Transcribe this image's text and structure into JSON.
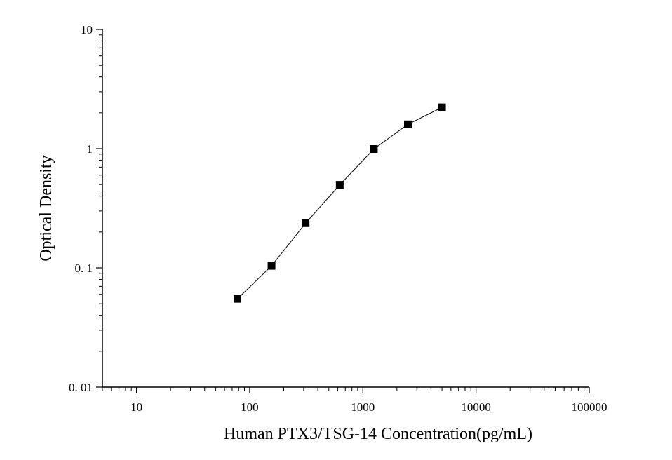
{
  "chart_data": {
    "type": "line",
    "title": "",
    "xlabel": "Human PTX3/TSG-14 Concentration(pg/mL)",
    "ylabel": "Optical Density",
    "x_scale": "log",
    "y_scale": "log",
    "xlim": [
      5,
      100000
    ],
    "ylim": [
      0.01,
      10
    ],
    "x_ticks": [
      {
        "value": 10,
        "label": "10"
      },
      {
        "value": 100,
        "label": "100"
      },
      {
        "value": 1000,
        "label": "1000"
      },
      {
        "value": 10000,
        "label": "10000"
      },
      {
        "value": 100000,
        "label": "100000"
      }
    ],
    "y_ticks": [
      {
        "value": 0.01,
        "label": "0. 01"
      },
      {
        "value": 0.1,
        "label": "0. 1"
      },
      {
        "value": 1,
        "label": "1"
      },
      {
        "value": 10,
        "label": "10"
      }
    ],
    "grid": false,
    "marker": "square",
    "series": [
      {
        "x": [
          78,
          156,
          312,
          625,
          1250,
          2500,
          5000
        ],
        "y": [
          0.055,
          0.104,
          0.237,
          0.497,
          0.993,
          1.6,
          2.22
        ]
      }
    ]
  }
}
